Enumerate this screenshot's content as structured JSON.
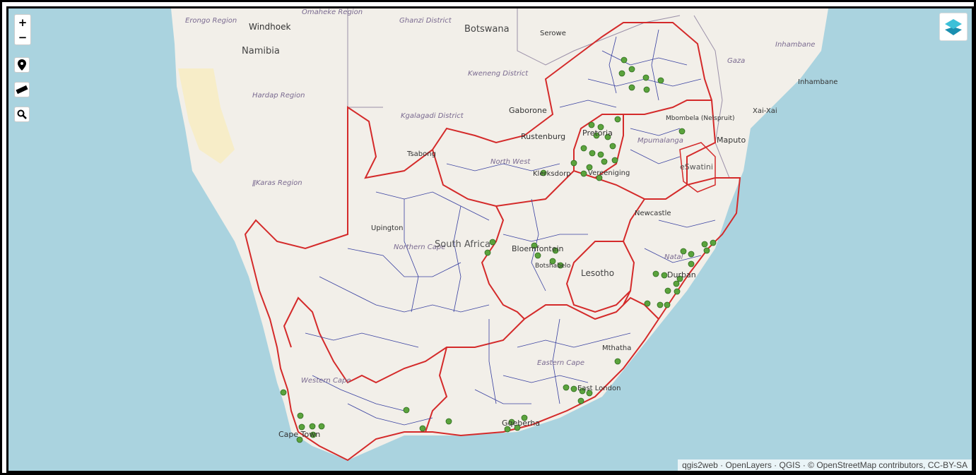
{
  "controls": {
    "zoom_in": "+",
    "zoom_out": "−",
    "locate_icon": "map-pin-icon",
    "measure_icon": "ruler-icon",
    "search_icon": "search-icon",
    "layers_icon": "layers-icon"
  },
  "attribution": "qgis2web · OpenLayers · QGIS · © OpenStreetMap contributors, CC-BY-SA",
  "places": {
    "windhoek": "Windhoek",
    "namibia": "Namibia",
    "erongo": "Erongo Region",
    "omaheke": "Omaheke Region",
    "ghanzi": "Ghanzi District",
    "botswana": "Botswana",
    "serowe": "Serowe",
    "kweneng": "Kweneng District",
    "gaborone": "Gaborone",
    "hardap": "Hardap Region",
    "kgalagadi": "Kgalagadi District",
    "tsabong": "Tsabong",
    "ilkaras": "ǁKaras Region",
    "rustenburg": "Rustenburg",
    "pretoria": "Pretoria",
    "north_west": "North West",
    "klerksdorp": "Klerksdorp",
    "vereeniging": "Vereeniging",
    "mpumalanga": "Mpumalanga",
    "mbombela": "Mbombela (Nelspruit)",
    "eswatini": "eSwatini",
    "maputo": "Maputo",
    "gaza": "Gaza",
    "inhambane_region": "Inhambane",
    "inhambane": "Inhambane",
    "xai_xai": "Xai-Xai",
    "upington": "Upington",
    "northern_cape": "Northern Cape",
    "south_africa": "South Africa",
    "bloemfontein": "Bloemfontein",
    "botshabelo": "Botshabelo",
    "newcastle": "Newcastle",
    "natal": "Natal",
    "lesotho": "Lesotho",
    "durban": "Durban",
    "mthatha": "Mthatha",
    "eastern_cape": "Eastern Cape",
    "east_london": "East London",
    "western_cape": "Western Cape",
    "gqeberha": "Gqeberha",
    "cape_town": "Cape Town"
  },
  "colors": {
    "water": "#aad3df",
    "land": "#f2efe9",
    "province_border": "#d42a2a",
    "municipal_border": "#3840a0",
    "point": "#5ba33d"
  }
}
